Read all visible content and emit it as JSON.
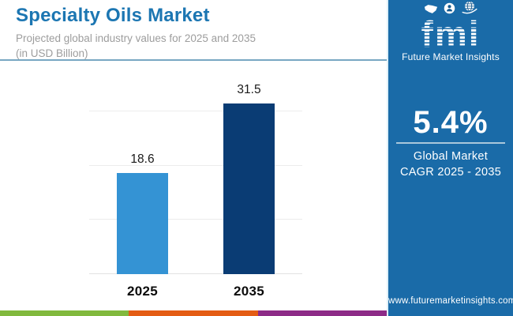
{
  "header": {
    "title": "Specialty Oils Market",
    "subtitle_line1": "Projected global industry values for 2025 and 2035",
    "subtitle_line2": "(in USD Billion)"
  },
  "chart_data": {
    "type": "bar",
    "categories": [
      "2025",
      "2035"
    ],
    "values": [
      18.6,
      31.5
    ],
    "value_labels": [
      "18.6",
      "31.5"
    ],
    "colors": [
      "#3493d4",
      "#0a3c74"
    ],
    "title": "Specialty Oils Market",
    "subtitle": "Projected global industry values for 2025 and 2035 (in USD Billion)",
    "xlabel": "",
    "ylabel": "",
    "ylim": [
      0,
      33.1
    ],
    "gridlines": [
      10,
      20,
      30
    ],
    "grid": true,
    "legend_position": "none"
  },
  "sidebar": {
    "background": "#1a6ba8",
    "logo": {
      "text": "fmi",
      "tagline": "Future Market Insights",
      "icons": [
        "map-icon",
        "person-icon",
        "globe-icon"
      ]
    },
    "stat": {
      "value": "5.4%",
      "label_line1": "Global Market",
      "label_line2": "CAGR 2025 - 2035"
    },
    "website": "www.futuremarketinsights.com"
  },
  "footer_stripes": [
    "#81b93d",
    "#e45c14",
    "#8d2b87"
  ],
  "colors": {
    "title_blue": "#1c76b2",
    "subtitle_gray": "#9d9d9d",
    "header_divider": "#78a7c2",
    "bar_2025": "#3493d4",
    "bar_2035": "#0a3c74",
    "sidebar_blue": "#1a6ba8",
    "stat_divider": "#a9c8db"
  }
}
